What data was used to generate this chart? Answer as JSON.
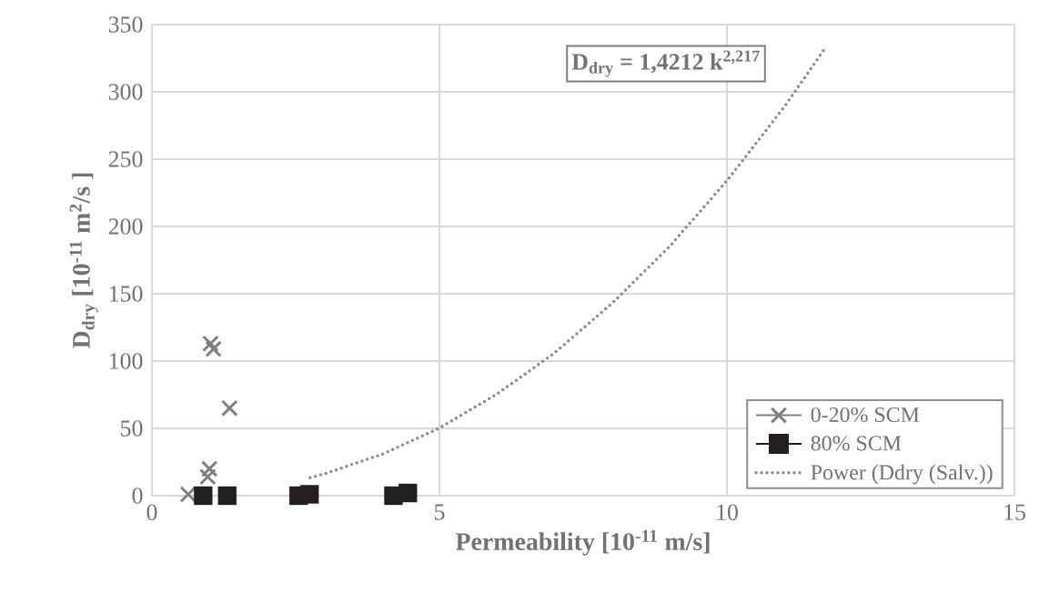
{
  "chart_data": {
    "type": "scatter",
    "xlabel": "Permeability [10$^{-11}$ m/s]",
    "ylabel": "D$_{dry}$ [10$^{-11}$ m$^{2}$/s ]",
    "xlim": [
      0,
      15
    ],
    "xticks": [
      0,
      5,
      10,
      15
    ],
    "ylim": [
      0,
      350
    ],
    "yticks": [
      0,
      50,
      100,
      150,
      200,
      250,
      300,
      350
    ],
    "grid": true,
    "legend": "bottom right",
    "annotations": [
      "D$_{dry}$ = 1,4212 k$^{2,217}$"
    ],
    "series": [
      {
        "name": "0-20% SCM",
        "type": "scatter",
        "marker": "cross",
        "color": "#808080",
        "x": [
          1.02,
          1.07,
          1.35,
          1.0,
          0.97,
          0.63
        ],
        "values": [
          113,
          109,
          65,
          20,
          14,
          1
        ]
      },
      {
        "name": "80% SCM",
        "type": "scatter",
        "marker": "square",
        "color": "#231f20",
        "x": [
          0.89,
          1.31,
          2.55,
          2.74,
          4.2,
          4.45
        ],
        "values": [
          0,
          0,
          0,
          1,
          0,
          2
        ]
      },
      {
        "name": "Power (Ddry (Salv.))",
        "type": "line",
        "marker": "none",
        "line_style": "dotted",
        "color": "#8c8c8c",
        "x": [
          2.75,
          3,
          4,
          5,
          6,
          7,
          8,
          9,
          10,
          11,
          11.7
        ],
        "values": [
          13.4,
          16.2,
          30.7,
          50.3,
          75.5,
          106,
          142.8,
          185,
          234,
          289,
          332
        ]
      }
    ]
  }
}
